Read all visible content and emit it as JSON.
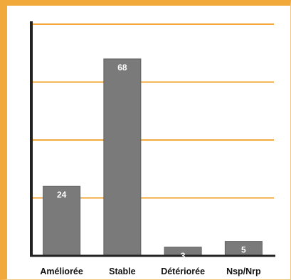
{
  "chart_data": {
    "type": "bar",
    "categories": [
      "Améliorée",
      "Stable",
      "Détériorée",
      "Nsp/Nrp"
    ],
    "values": [
      24,
      68,
      3,
      5
    ],
    "data_labels": [
      "24",
      "68",
      "3",
      "5"
    ],
    "title": "",
    "xlabel": "",
    "ylabel": "",
    "ylim": [
      0,
      80
    ],
    "grid": true,
    "legend": "none"
  },
  "colors": {
    "bar": "#7a7a7a",
    "grid": "#f0a93a",
    "frame": "#f0a93a",
    "axis": "#222222"
  }
}
